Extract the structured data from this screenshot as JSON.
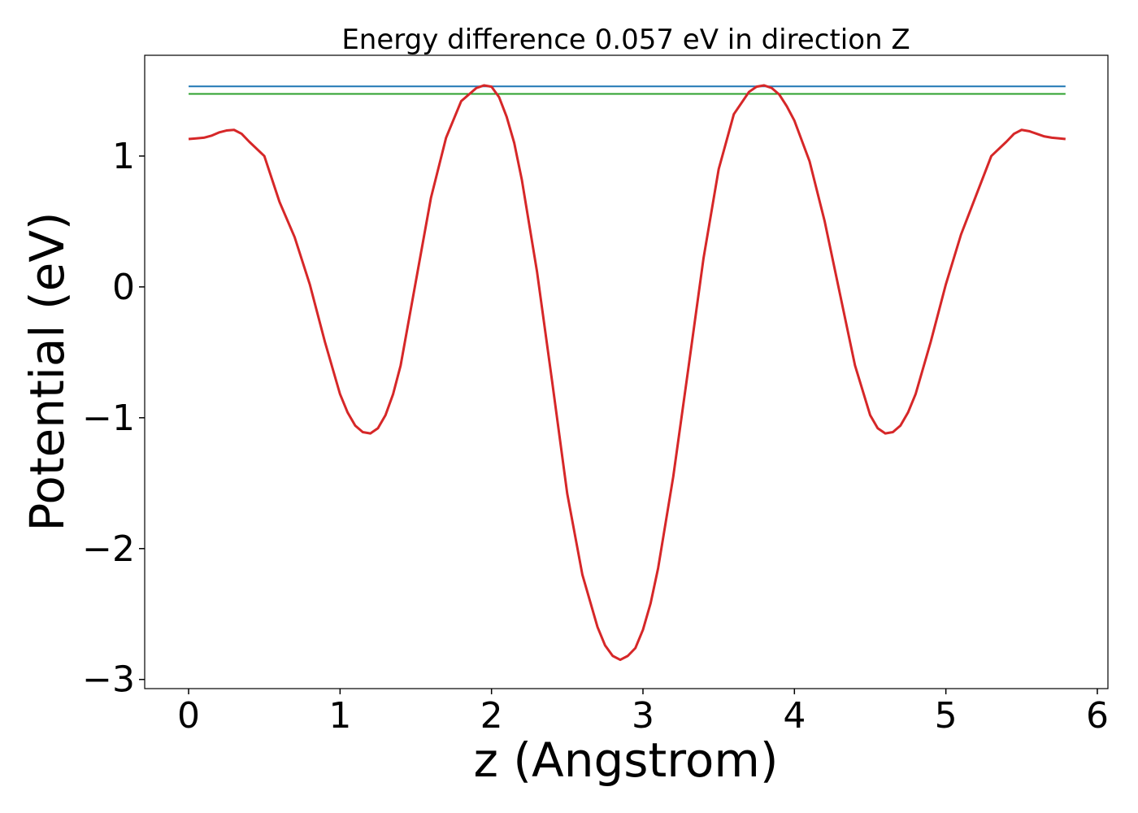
{
  "chart_data": {
    "type": "line",
    "title": "Energy difference 0.057 eV in direction Z",
    "xlabel": "z (Angstrom)",
    "ylabel": "Potential (eV)",
    "xlim": [
      -0.29,
      6.07
    ],
    "ylim": [
      -3.07,
      1.77
    ],
    "x_ticks": [
      0,
      1,
      2,
      3,
      4,
      5,
      6
    ],
    "x_tick_labels": [
      "0",
      "1",
      "2",
      "3",
      "4",
      "5",
      "6"
    ],
    "y_ticks": [
      -3,
      -2,
      -1,
      0,
      1
    ],
    "y_tick_labels": [
      "−3",
      "−2",
      "−1",
      "0",
      "1"
    ],
    "grid": false,
    "series": [
      {
        "kind": "hline",
        "color": "#1f77b4",
        "y": 1.532,
        "x_range": [
          0,
          5.79
        ]
      },
      {
        "kind": "hline",
        "color": "#2ca02c",
        "y": 1.475,
        "x_range": [
          0,
          5.79
        ]
      },
      {
        "kind": "curve",
        "color": "#d62728",
        "x": [
          0.0,
          0.05,
          0.1,
          0.15,
          0.2,
          0.25,
          0.3,
          0.35,
          0.4,
          0.5,
          0.6,
          0.7,
          0.8,
          0.9,
          1.0,
          1.05,
          1.1,
          1.15,
          1.2,
          1.25,
          1.3,
          1.35,
          1.4,
          1.5,
          1.6,
          1.7,
          1.8,
          1.9,
          1.95,
          2.0,
          2.05,
          2.1,
          2.15,
          2.2,
          2.3,
          2.4,
          2.5,
          2.6,
          2.7,
          2.75,
          2.8,
          2.85,
          2.9,
          2.95,
          3.0,
          3.05,
          3.1,
          3.2,
          3.3,
          3.4,
          3.5,
          3.6,
          3.7,
          3.75,
          3.8,
          3.85,
          3.9,
          3.95,
          4.0,
          4.1,
          4.2,
          4.3,
          4.4,
          4.5,
          4.55,
          4.6,
          4.65,
          4.7,
          4.75,
          4.8,
          4.9,
          5.0,
          5.1,
          5.2,
          5.3,
          5.4,
          5.45,
          5.5,
          5.55,
          5.6,
          5.65,
          5.7,
          5.75,
          5.79
        ],
        "y": [
          1.13,
          1.135,
          1.14,
          1.155,
          1.18,
          1.195,
          1.2,
          1.17,
          1.11,
          1.0,
          0.65,
          0.38,
          0.02,
          -0.42,
          -0.82,
          -0.96,
          -1.06,
          -1.11,
          -1.12,
          -1.08,
          -0.98,
          -0.82,
          -0.6,
          0.04,
          0.68,
          1.14,
          1.42,
          1.52,
          1.54,
          1.53,
          1.45,
          1.3,
          1.1,
          0.82,
          0.12,
          -0.72,
          -1.58,
          -2.2,
          -2.6,
          -2.74,
          -2.82,
          -2.85,
          -2.82,
          -2.76,
          -2.62,
          -2.42,
          -2.15,
          -1.45,
          -0.62,
          0.22,
          0.9,
          1.32,
          1.49,
          1.53,
          1.54,
          1.52,
          1.47,
          1.38,
          1.27,
          0.96,
          0.5,
          -0.05,
          -0.6,
          -0.98,
          -1.08,
          -1.12,
          -1.11,
          -1.06,
          -0.96,
          -0.82,
          -0.42,
          0.02,
          0.4,
          0.7,
          1.0,
          1.11,
          1.17,
          1.2,
          1.19,
          1.17,
          1.15,
          1.14,
          1.135,
          1.13
        ]
      }
    ]
  }
}
